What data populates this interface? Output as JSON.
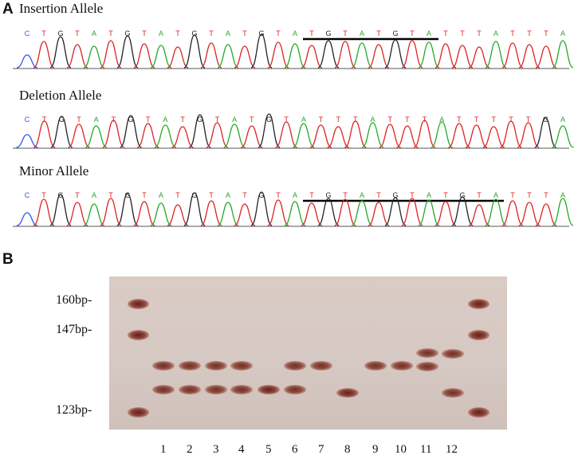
{
  "panel_a": {
    "letter": "A",
    "tracks": [
      {
        "title": "Insertion Allele",
        "bases": "CTGTATGTATGTATGTATGTATGTATTTATTTA"
      },
      {
        "title": "Deletion Allele",
        "bases": "CTGTATGTATGTATGTATTTATTTATTTTTGA"
      },
      {
        "title": "Minor Allele",
        "bases": "CTGTATGTATGTATGTATGTATGTATGTATTTA"
      }
    ],
    "base_colors": {
      "A": "#22aa22",
      "T": "#dd2222",
      "G": "#222222",
      "C": "#3355ee"
    }
  },
  "panel_b": {
    "letter": "B",
    "ladder": [
      {
        "label": "160bp-"
      },
      {
        "label": "147bp-"
      },
      {
        "label": "123bp-"
      }
    ],
    "lanes": [
      "1",
      "2",
      "3",
      "4",
      "5",
      "6",
      "7",
      "8",
      "9",
      "10",
      "11",
      "12"
    ]
  }
}
